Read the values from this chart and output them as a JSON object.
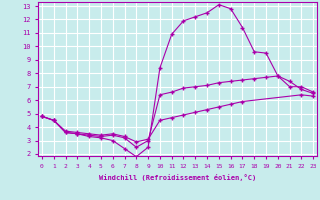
{
  "xlabel": "Windchill (Refroidissement éolien,°C)",
  "ylabel": "",
  "bg_color": "#c8ecec",
  "line_color": "#aa00aa",
  "grid_color": "#ffffff",
  "xmin": 0,
  "xmax": 23,
  "ymin": 2,
  "ymax": 13,
  "line1_x": [
    0,
    1,
    2,
    3,
    4,
    5,
    6,
    7,
    8,
    9,
    10,
    11,
    12,
    13,
    14,
    15,
    16,
    17,
    18,
    19,
    20,
    21,
    22,
    23
  ],
  "line1_y": [
    4.8,
    4.5,
    3.6,
    3.5,
    3.3,
    3.2,
    3.0,
    2.4,
    1.8,
    2.5,
    8.4,
    10.9,
    11.9,
    12.2,
    12.5,
    13.1,
    12.8,
    11.4,
    9.6,
    9.5,
    7.8,
    7.4,
    6.8,
    6.5
  ],
  "line2_x": [
    0,
    1,
    2,
    3,
    4,
    5,
    6,
    7,
    8,
    9,
    10,
    11,
    12,
    13,
    14,
    15,
    16,
    17,
    18,
    19,
    20,
    21,
    22,
    23
  ],
  "line2_y": [
    4.8,
    4.5,
    3.6,
    3.5,
    3.4,
    3.3,
    3.4,
    3.2,
    2.5,
    3.0,
    6.4,
    6.6,
    6.9,
    7.0,
    7.1,
    7.3,
    7.4,
    7.5,
    7.6,
    7.7,
    7.8,
    7.0,
    7.0,
    6.6
  ],
  "line3_x": [
    0,
    1,
    2,
    3,
    4,
    5,
    6,
    7,
    8,
    9,
    10,
    11,
    12,
    13,
    14,
    15,
    16,
    17,
    22,
    23
  ],
  "line3_y": [
    4.8,
    4.5,
    3.7,
    3.6,
    3.5,
    3.4,
    3.5,
    3.3,
    2.9,
    3.1,
    4.5,
    4.7,
    4.9,
    5.1,
    5.3,
    5.5,
    5.7,
    5.9,
    6.4,
    6.3
  ],
  "marker": "+"
}
